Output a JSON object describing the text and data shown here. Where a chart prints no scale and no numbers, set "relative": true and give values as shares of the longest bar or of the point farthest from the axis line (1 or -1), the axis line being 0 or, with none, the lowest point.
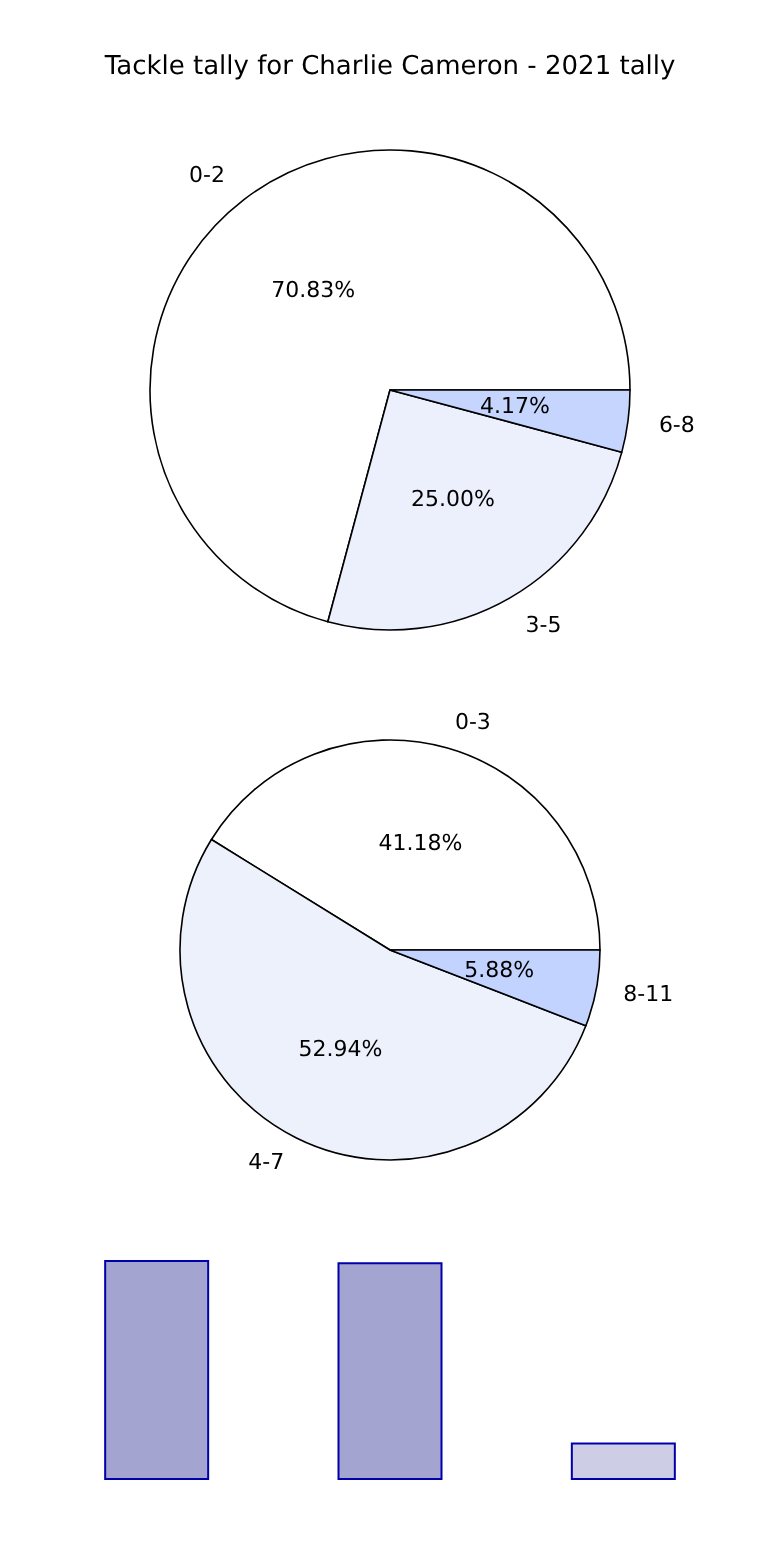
{
  "chart_data": [
    {
      "type": "pie",
      "title": "Tackle tally for Charlie Cameron - 2021 tally",
      "categories": [
        "0-2",
        "3-5",
        "6-8"
      ],
      "values": [
        70.83,
        25.0,
        4.17
      ],
      "value_labels": [
        "70.83%",
        "25.00%",
        "4.17%"
      ],
      "colors": [
        "#ffffff",
        "#ebf0fc",
        "#c5d5fe"
      ],
      "legend": false
    },
    {
      "type": "pie",
      "categories": [
        "0-3",
        "4-7",
        "8-11"
      ],
      "values": [
        41.18,
        52.94,
        5.88
      ],
      "value_labels": [
        "41.18%",
        "52.94%",
        "5.88%"
      ],
      "colors": [
        "#ffffff",
        "#edf1fb",
        "#c3d3ff"
      ],
      "legend": false
    },
    {
      "type": "bar",
      "categories": [
        null,
        null,
        null
      ],
      "values": [
        1,
        0.99,
        0.17
      ],
      "relative": true,
      "colors": [
        "#a3a5d0",
        "#a3a5d0",
        "#cdcde6"
      ]
    }
  ]
}
